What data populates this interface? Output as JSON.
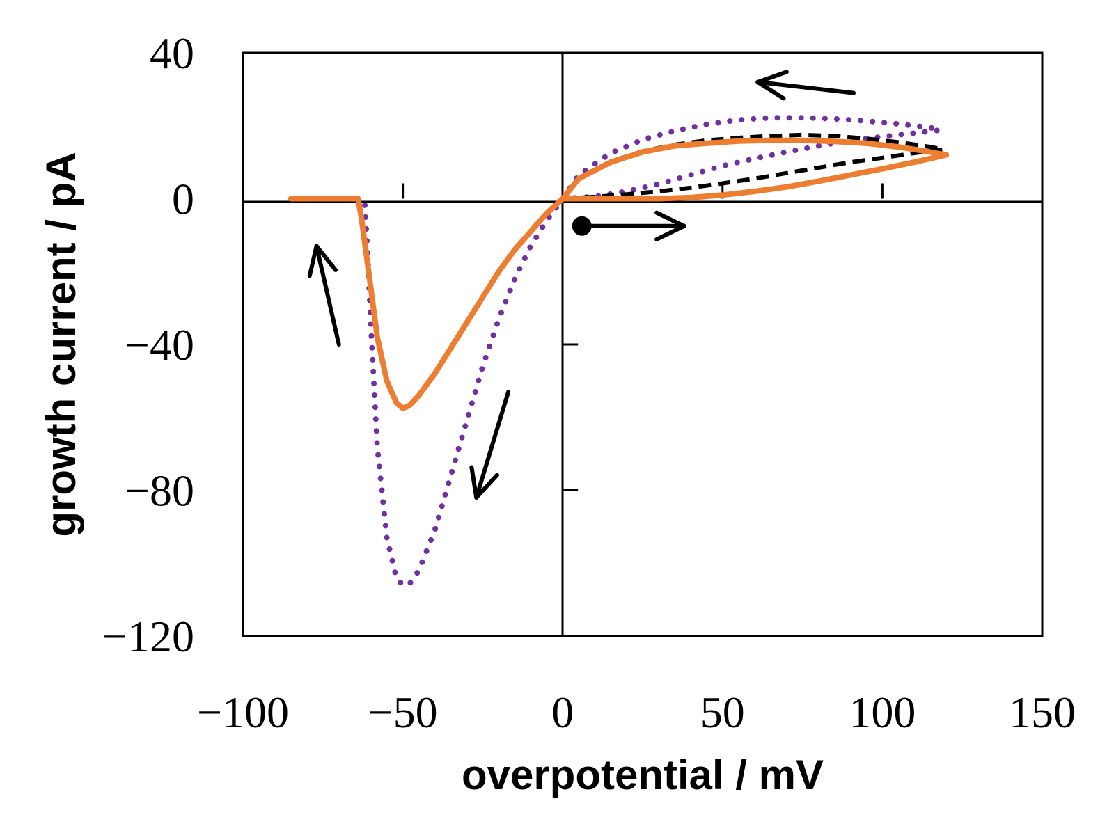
{
  "chart_data": {
    "type": "line",
    "title": "",
    "xlabel": "overpotential / mV",
    "ylabel": "growth current  / pA",
    "xlim": [
      -100,
      150
    ],
    "ylim": [
      -120,
      40
    ],
    "x_ticks": [
      -100,
      -50,
      0,
      50,
      100,
      150
    ],
    "y_ticks": [
      40,
      0,
      -40,
      -80,
      -120
    ],
    "x_tick_labels": [
      "−100",
      "−50",
      "0",
      "50",
      "100",
      "150"
    ],
    "y_tick_labels": [
      "40",
      "0",
      "−40",
      "−80",
      "−120"
    ],
    "grid": false,
    "series": [
      {
        "style": "dotted",
        "color": "#7030A0",
        "x": [
          0,
          10,
          20,
          30,
          40,
          50,
          60,
          70,
          80,
          90,
          100,
          110,
          118,
          115,
          105,
          95,
          85,
          75,
          65,
          55,
          45,
          35,
          25,
          15,
          5,
          0,
          -5,
          -10,
          -15,
          -20,
          -25,
          -30,
          -35,
          -40,
          -45,
          -48,
          -50,
          -52,
          -55,
          -58,
          -60,
          -61,
          -62
        ],
        "y": [
          0,
          0.6,
          2,
          4,
          6.5,
          9,
          11,
          12.8,
          14.5,
          16,
          17,
          18,
          18.8,
          19.5,
          20.5,
          21.3,
          21.9,
          22.2,
          22.2,
          21.6,
          20.4,
          18.6,
          16.2,
          12.5,
          6.5,
          0,
          -6,
          -13,
          -22,
          -33,
          -46,
          -61,
          -76,
          -91,
          -102,
          -105.8,
          -106,
          -104,
          -93,
          -68,
          -35,
          -15,
          0
        ]
      },
      {
        "style": "dashed",
        "color": "#000000",
        "x": [
          0,
          10,
          20,
          30,
          40,
          50,
          60,
          70,
          80,
          90,
          100,
          110,
          119,
          115,
          105,
          95,
          85,
          75,
          65,
          55,
          45,
          35,
          25,
          15,
          5,
          0,
          -5,
          -10,
          -15,
          -20,
          -25,
          -30,
          -35,
          -40,
          -45,
          -48,
          -50,
          -52,
          -55,
          -58,
          -61,
          -63,
          -64
        ],
        "y": [
          0,
          0.5,
          1.2,
          2,
          3,
          4.2,
          5.5,
          7,
          8.5,
          10,
          11.2,
          12.5,
          13.5,
          14.2,
          15.5,
          16.5,
          17.2,
          17.5,
          17.2,
          16.7,
          16,
          14.8,
          13,
          10.2,
          5.5,
          0,
          -4,
          -9,
          -14,
          -20,
          -27,
          -34,
          -41,
          -48,
          -54,
          -56.8,
          -57.5,
          -56,
          -50,
          -38,
          -18,
          -5,
          0
        ]
      },
      {
        "style": "solid",
        "color": "#ED7D31",
        "x": [
          0,
          10,
          20,
          30,
          40,
          50,
          60,
          70,
          80,
          90,
          100,
          110,
          120,
          115,
          105,
          95,
          85,
          75,
          65,
          55,
          45,
          35,
          25,
          15,
          5,
          0,
          -5,
          -10,
          -15,
          -20,
          -25,
          -30,
          -35,
          -40,
          -45,
          -48,
          -50,
          -52,
          -55,
          -58,
          -61,
          -63,
          -64,
          -66,
          -70,
          -75,
          -80,
          -85
        ],
        "y": [
          0,
          0,
          0,
          0,
          0.3,
          1,
          2,
          3.2,
          4.8,
          6.5,
          8.2,
          10,
          12,
          12.8,
          14.2,
          15.2,
          15.7,
          16,
          16,
          15.8,
          15.2,
          14.5,
          12.8,
          10,
          5.5,
          0,
          -4,
          -9,
          -14,
          -20,
          -27,
          -34,
          -41,
          -48,
          -54,
          -56.8,
          -57.5,
          -56,
          -50,
          -38,
          -18,
          -5,
          0,
          0,
          0,
          0,
          0,
          0
        ]
      }
    ],
    "annotations": [
      {
        "type": "start-marker",
        "x": 6,
        "y": -7.5
      },
      {
        "type": "arrow",
        "direction": "right",
        "from": [
          6,
          -7.5
        ],
        "to": [
          38,
          -7.5
        ]
      },
      {
        "type": "arrow",
        "direction": "left",
        "from": [
          91,
          29
        ],
        "to": [
          61,
          32
        ]
      },
      {
        "type": "arrow",
        "direction": "down",
        "from": [
          -17,
          -53
        ],
        "to": [
          -27,
          -82
        ]
      },
      {
        "type": "arrow",
        "direction": "up",
        "from": [
          -70,
          -40
        ],
        "to": [
          -77,
          -13
        ]
      }
    ]
  }
}
